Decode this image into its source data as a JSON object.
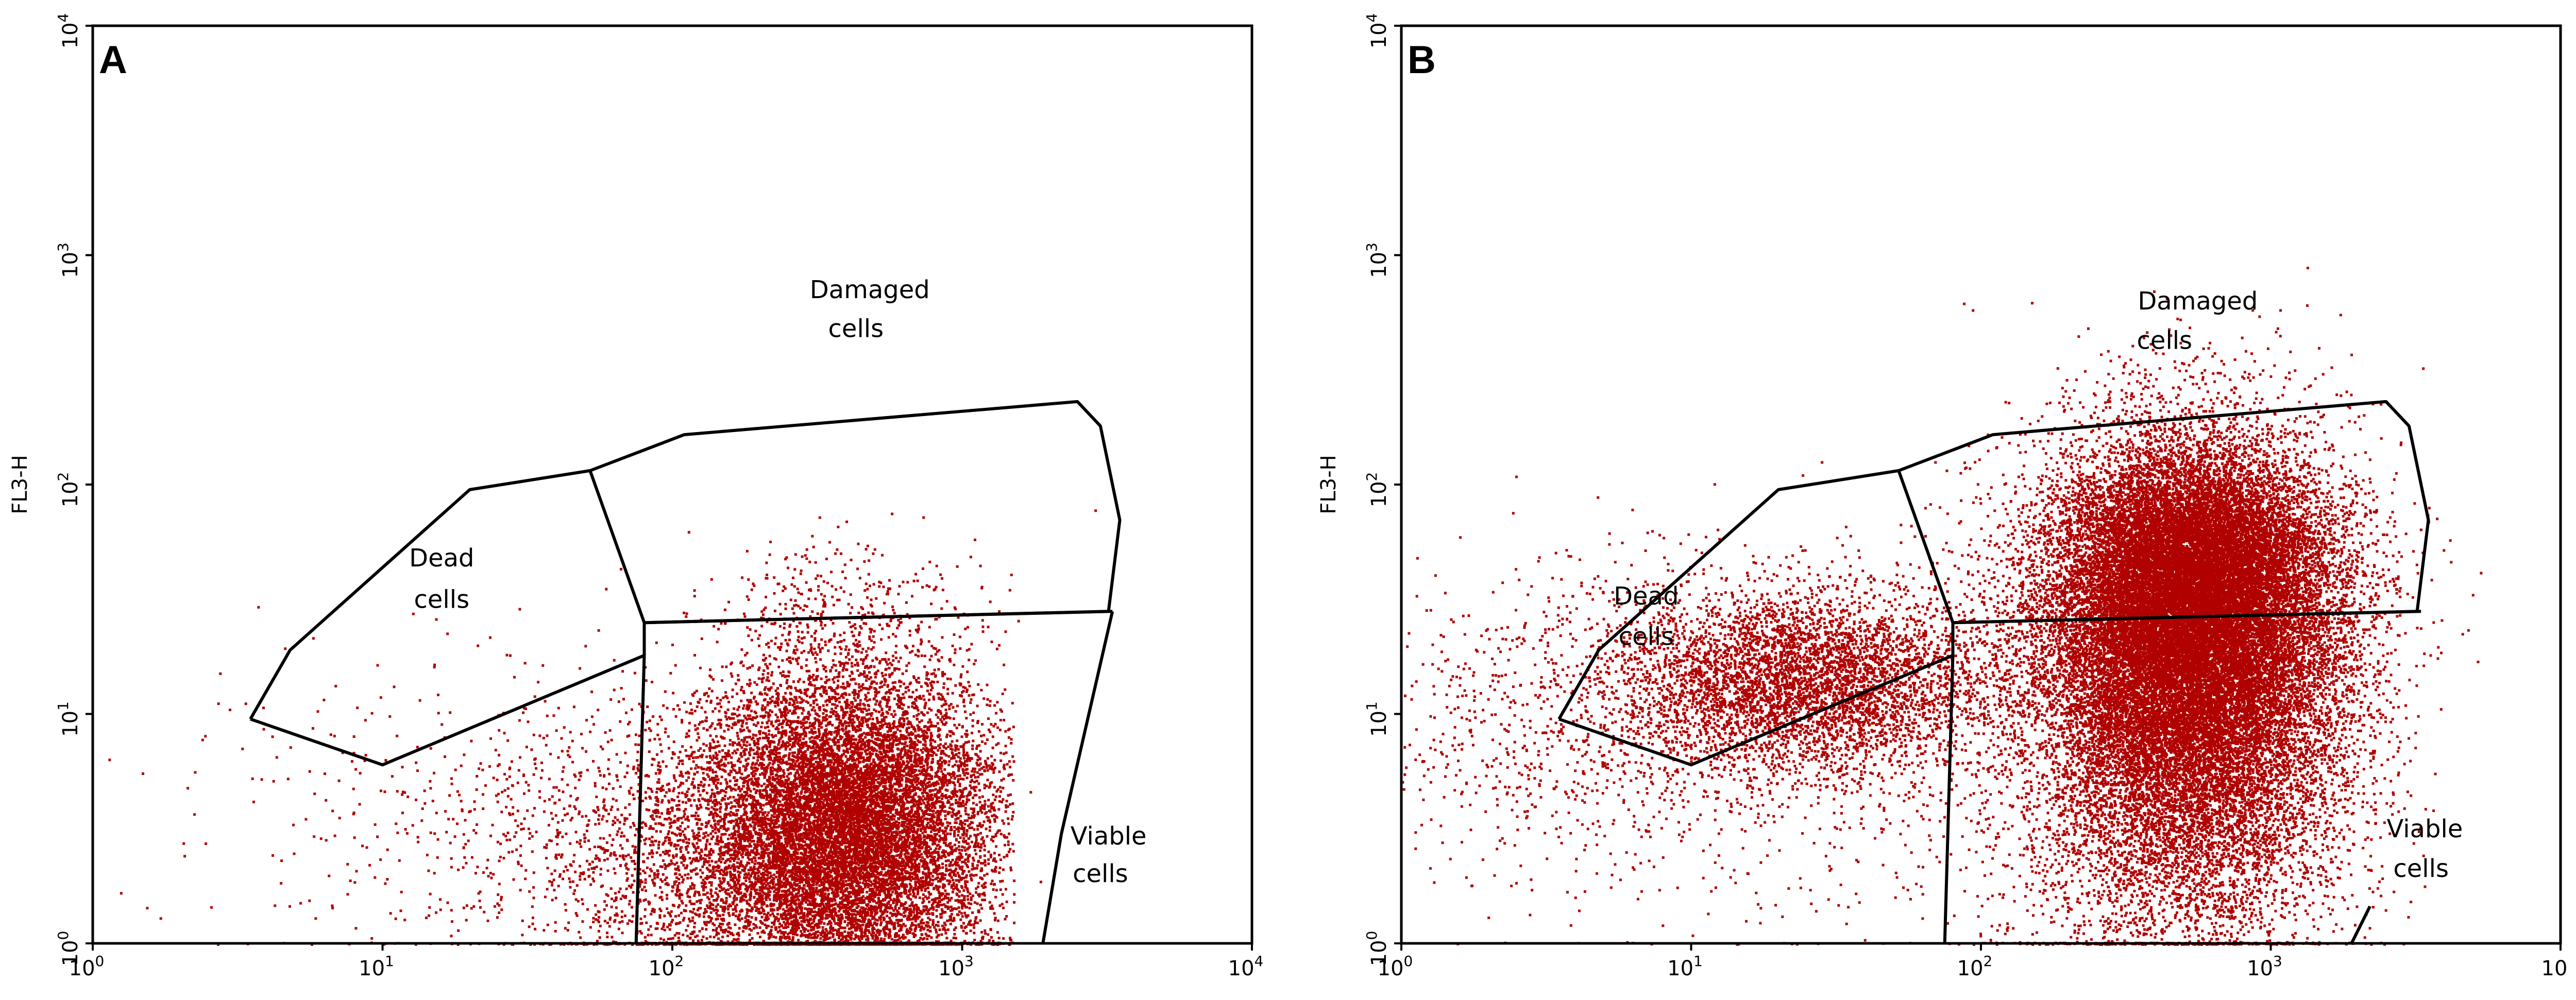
{
  "chart_data": [
    {
      "type": "scatter",
      "panel": "A",
      "title": "",
      "xlabel": "",
      "ylabel": "FL3-H",
      "xscale": "log",
      "yscale": "log",
      "xlim": [
        1,
        10000
      ],
      "ylim": [
        1,
        10000
      ],
      "x_ticks": [
        {
          "base": "10",
          "exp": "0"
        },
        {
          "base": "10",
          "exp": "1"
        },
        {
          "base": "10",
          "exp": "2"
        },
        {
          "base": "10",
          "exp": "3"
        },
        {
          "base": "10",
          "exp": "4"
        }
      ],
      "y_ticks": [
        {
          "base": "10",
          "exp": "0"
        },
        {
          "base": "10",
          "exp": "1"
        },
        {
          "base": "10",
          "exp": "2"
        },
        {
          "base": "10",
          "exp": "3"
        },
        {
          "base": "10",
          "exp": "4"
        }
      ],
      "point_color": "#b00000",
      "gates": [
        {
          "name": "dead",
          "points": [
            [
              3.5,
              9.5
            ],
            [
              4.8,
              19
            ],
            [
              20,
              95
            ],
            [
              52,
              115
            ],
            [
              80,
              25
            ],
            [
              80,
              18
            ],
            [
              10,
              6
            ],
            [
              3.5,
              9.5
            ]
          ]
        },
        {
          "name": "damaged-upper",
          "points": [
            [
              52,
              115
            ],
            [
              110,
              165
            ],
            [
              2500,
              230
            ],
            [
              3000,
              180
            ],
            [
              3500,
              70
            ],
            [
              3200,
              28
            ],
            [
              80,
              25
            ]
          ]
        },
        {
          "name": "damaged-viable-divider",
          "points": [
            [
              80,
              25
            ],
            [
              3300,
              28
            ]
          ]
        },
        {
          "name": "viable-left",
          "points": [
            [
              80,
              18
            ],
            [
              75,
              1
            ]
          ]
        },
        {
          "name": "viable-right",
          "points": [
            [
              3300,
              28
            ],
            [
              2200,
              3
            ],
            [
              1900,
              1
            ]
          ]
        }
      ],
      "labels": [
        {
          "key": "dead_l1",
          "text": "Dead",
          "x": 16,
          "y": 44
        },
        {
          "key": "dead_l2",
          "text": "cells",
          "x": 16,
          "y": 29
        },
        {
          "key": "dam_l1",
          "text": "Damaged",
          "x": 480,
          "y": 650
        },
        {
          "key": "dam_l2",
          "text": "cells",
          "x": 430,
          "y": 440
        },
        {
          "key": "via_l1",
          "text": "Viable",
          "x": 3200,
          "y": 2.7
        },
        {
          "key": "via_l2",
          "text": "cells",
          "x": 3000,
          "y": 1.85
        }
      ],
      "panel_letter": "A",
      "populations": [
        {
          "name": "viable-main",
          "count": 14000,
          "cx": 400,
          "cy": 3.2,
          "sx": 0.26,
          "sy": 0.36,
          "xmin": 75,
          "xmax": 1500,
          "ymax": 40
        },
        {
          "name": "low-scatter",
          "count": 2000,
          "cx": 130,
          "cy": 2.2,
          "sx": 0.35,
          "sy": 0.35
        },
        {
          "name": "dead-tail",
          "count": 380,
          "cx": 25,
          "cy": 4,
          "sx": 0.4,
          "sy": 0.35
        },
        {
          "name": "damaged-sparse",
          "count": 250,
          "cx": 400,
          "cy": 32,
          "sx": 0.25,
          "sy": 0.14
        },
        {
          "name": "outliers",
          "count": 70,
          "cx": 6,
          "cy": 3,
          "sx": 0.55,
          "sy": 0.45
        }
      ]
    },
    {
      "type": "scatter",
      "panel": "B",
      "title": "",
      "xlabel": "",
      "ylabel": "FL3-H",
      "xscale": "log",
      "yscale": "log",
      "xlim": [
        1,
        10000
      ],
      "ylim": [
        1,
        10000
      ],
      "x_ticks": [
        {
          "base": "10",
          "exp": "0"
        },
        {
          "base": "10",
          "exp": "1"
        },
        {
          "base": "10",
          "exp": "2"
        },
        {
          "base": "10",
          "exp": "3"
        },
        {
          "base": "10",
          "exp": ""
        }
      ],
      "y_ticks": [
        {
          "base": "10",
          "exp": "0"
        },
        {
          "base": "10",
          "exp": "1"
        },
        {
          "base": "10",
          "exp": "2"
        },
        {
          "base": "10",
          "exp": "3"
        },
        {
          "base": "10",
          "exp": "4"
        }
      ],
      "point_color": "#b00000",
      "gates": [
        {
          "name": "dead",
          "points": [
            [
              3.5,
              9.5
            ],
            [
              4.8,
              19
            ],
            [
              20,
              95
            ],
            [
              52,
              115
            ],
            [
              80,
              25
            ],
            [
              80,
              18
            ],
            [
              10,
              6
            ],
            [
              3.5,
              9.5
            ]
          ]
        },
        {
          "name": "damaged-upper",
          "points": [
            [
              52,
              115
            ],
            [
              110,
              165
            ],
            [
              2500,
              230
            ],
            [
              3000,
              180
            ],
            [
              3500,
              70
            ],
            [
              3200,
              28
            ],
            [
              80,
              25
            ]
          ]
        },
        {
          "name": "damaged-viable-divider",
          "points": [
            [
              80,
              25
            ],
            [
              3300,
              28
            ]
          ]
        },
        {
          "name": "viable-left",
          "points": [
            [
              80,
              18
            ],
            [
              75,
              1
            ]
          ]
        },
        {
          "name": "viable-right",
          "points": [
            [
              1900,
              1
            ],
            [
              2200,
              1.45
            ]
          ]
        }
      ],
      "labels": [
        {
          "key": "dead_l1",
          "text": "Dead",
          "x": 7,
          "y": 30
        },
        {
          "key": "dead_l2",
          "text": "cells",
          "x": 7,
          "y": 20
        },
        {
          "key": "dam_l1",
          "text": "Damaged",
          "x": 560,
          "y": 580
        },
        {
          "key": "dam_l2",
          "text": "cells",
          "x": 430,
          "y": 390
        },
        {
          "key": "via_l1",
          "text": "Viable",
          "x": 3400,
          "y": 2.9
        },
        {
          "key": "via_l2",
          "text": "cells",
          "x": 3300,
          "y": 1.95
        }
      ],
      "panel_letter": "B",
      "populations": [
        {
          "name": "damaged-viable-cloud",
          "count": 26000,
          "cx": 520,
          "cy": 22,
          "sx": 0.26,
          "sy": 0.42
        },
        {
          "name": "dead-band",
          "count": 5000,
          "cx": 25,
          "cy": 14,
          "sx": 0.34,
          "sy": 0.2
        },
        {
          "name": "upper-cloud",
          "count": 5000,
          "cx": 550,
          "cy": 52,
          "sx": 0.22,
          "sy": 0.2
        },
        {
          "name": "low-tail",
          "count": 3000,
          "cx": 500,
          "cy": 3,
          "sx": 0.28,
          "sy": 0.35
        },
        {
          "name": "left-sparse",
          "count": 1000,
          "cx": 4,
          "cy": 9,
          "sx": 0.45,
          "sy": 0.35
        },
        {
          "name": "outliers",
          "count": 400,
          "cx": 60,
          "cy": 5,
          "sx": 0.6,
          "sy": 0.5
        }
      ]
    }
  ]
}
